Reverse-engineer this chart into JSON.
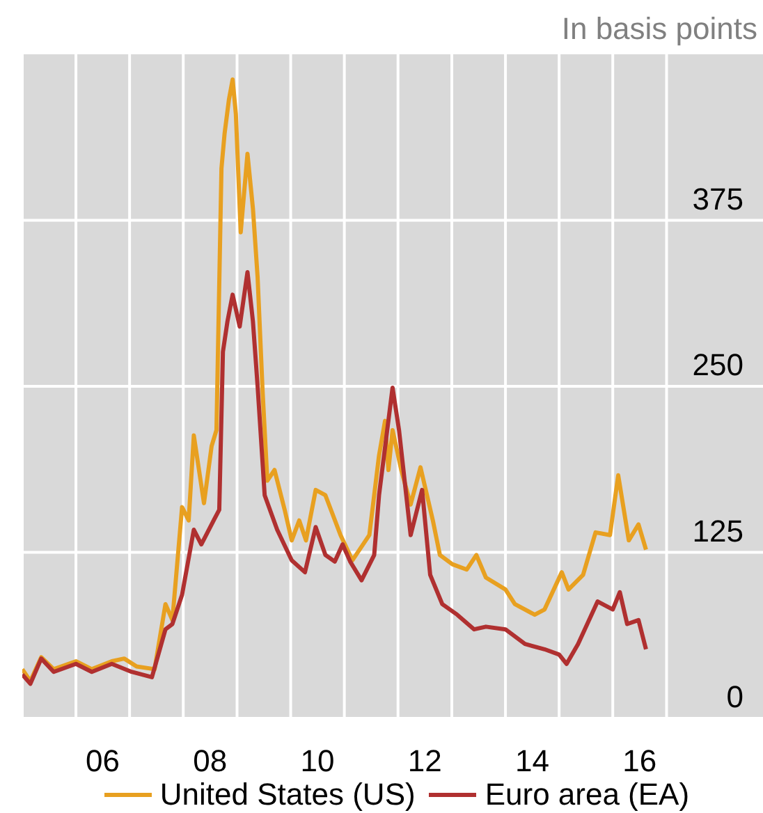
{
  "chart_data": {
    "type": "line",
    "ylabel": "In basis points",
    "xlim": [
      "2005-01-01",
      "2018-10-19"
    ],
    "ylim": [
      0,
      500
    ],
    "xticks": [
      {
        "value": "2005-01-01",
        "label": null
      },
      {
        "value": "2006-01-01",
        "label": null
      },
      {
        "value": "2006-07-02",
        "label": "06"
      },
      {
        "value": "2007-01-01",
        "label": null
      },
      {
        "value": "2008-01-01",
        "label": null
      },
      {
        "value": "2008-07-02",
        "label": "08"
      },
      {
        "value": "2009-01-01",
        "label": null
      },
      {
        "value": "2010-01-01",
        "label": null
      },
      {
        "value": "2010-07-02",
        "label": "10"
      },
      {
        "value": "2011-01-01",
        "label": null
      },
      {
        "value": "2012-01-01",
        "label": null
      },
      {
        "value": "2012-07-02",
        "label": "12"
      },
      {
        "value": "2013-01-01",
        "label": null
      },
      {
        "value": "2014-01-01",
        "label": null
      },
      {
        "value": "2014-07-02",
        "label": "14"
      },
      {
        "value": "2015-01-01",
        "label": null
      },
      {
        "value": "2016-01-01",
        "label": null
      },
      {
        "value": "2016-07-02",
        "label": "16"
      },
      {
        "value": "2017-01-01",
        "label": null
      }
    ],
    "yticks": [
      0,
      125,
      250,
      375
    ],
    "grid": true,
    "legend": "bottom",
    "marker": "none",
    "line_style": "solid",
    "series": [
      {
        "name": "United States (US)",
        "color": "#e8a020",
        "x": [
          "2005-01-01",
          "2005-02-25",
          "2005-05-10",
          "2005-08-03",
          "2006-01-01",
          "2006-04-19",
          "2006-09-02",
          "2006-11-25",
          "2007-02-18",
          "2007-06-20",
          "2007-09-02",
          "2007-10-19",
          "2007-12-24",
          "2008-02-07",
          "2008-03-13",
          "2008-05-21",
          "2008-07-12",
          "2008-08-14",
          "2008-09-17",
          "2008-10-08",
          "2008-11-07",
          "2008-12-02",
          "2008-12-24",
          "2009-01-26",
          "2009-03-13",
          "2009-04-19",
          "2009-05-21",
          "2009-06-24",
          "2009-07-26",
          "2009-09-13",
          "2009-11-21",
          "2010-01-08",
          "2010-02-28",
          "2010-04-15",
          "2010-06-20",
          "2010-08-25",
          "2010-12-06",
          "2011-02-25",
          "2011-06-20",
          "2011-08-25",
          "2011-10-05",
          "2011-10-28",
          "2011-11-25",
          "2012-01-23",
          "2012-03-27",
          "2012-06-02",
          "2012-08-25",
          "2012-10-12",
          "2013-01-05",
          "2013-04-12",
          "2013-06-17",
          "2013-08-21",
          "2014-01-01",
          "2014-03-06",
          "2014-07-19",
          "2014-09-24",
          "2015-01-19",
          "2015-03-06",
          "2015-06-13",
          "2015-09-06",
          "2015-12-13",
          "2016-02-07",
          "2016-04-19",
          "2016-06-24",
          "2016-08-14"
        ],
        "values": [
          37,
          28,
          46,
          37,
          43,
          37,
          43,
          45,
          39,
          37,
          86,
          74,
          159,
          149,
          213,
          162,
          205,
          217,
          414,
          440,
          466,
          481,
          455,
          366,
          425,
          384,
          332,
          246,
          179,
          187,
          157,
          134,
          149,
          134,
          172,
          168,
          138,
          119,
          138,
          198,
          224,
          187,
          217,
          187,
          161,
          189,
          149,
          123,
          116,
          112,
          123,
          106,
          97,
          86,
          78,
          82,
          110,
          97,
          108,
          140,
          138,
          183,
          134,
          146,
          127
        ]
      },
      {
        "name": "Euro area (EA)",
        "color": "#b03030",
        "x": [
          "2005-01-01",
          "2005-02-25",
          "2005-05-10",
          "2005-08-03",
          "2006-01-01",
          "2006-04-19",
          "2006-09-02",
          "2007-01-15",
          "2007-06-02",
          "2007-09-02",
          "2007-10-19",
          "2007-12-24",
          "2008-03-13",
          "2008-05-03",
          "2008-07-26",
          "2008-09-02",
          "2008-09-27",
          "2008-10-28",
          "2008-12-02",
          "2009-01-19",
          "2009-03-13",
          "2009-04-19",
          "2009-05-21",
          "2009-07-08",
          "2009-10-01",
          "2010-01-08",
          "2010-04-08",
          "2010-06-20",
          "2010-08-25",
          "2010-10-28",
          "2010-12-20",
          "2011-02-10",
          "2011-04-28",
          "2011-07-23",
          "2011-08-25",
          "2011-10-15",
          "2011-11-25",
          "2012-01-08",
          "2012-03-27",
          "2012-06-13",
          "2012-08-07",
          "2012-10-28",
          "2013-02-07",
          "2013-06-02",
          "2013-08-21",
          "2014-01-01",
          "2014-05-14",
          "2014-09-24",
          "2015-01-01",
          "2015-02-21",
          "2015-05-10",
          "2015-09-20",
          "2016-01-01",
          "2016-02-18",
          "2016-04-08",
          "2016-06-24",
          "2016-08-14"
        ],
        "values": [
          33,
          26,
          45,
          35,
          41,
          35,
          41,
          35,
          31,
          67,
          71,
          93,
          142,
          131,
          149,
          157,
          276,
          299,
          319,
          295,
          336,
          299,
          250,
          168,
          142,
          119,
          110,
          144,
          123,
          118,
          131,
          118,
          104,
          123,
          168,
          213,
          249,
          217,
          138,
          172,
          108,
          86,
          78,
          67,
          69,
          67,
          56,
          52,
          48,
          41,
          56,
          88,
          82,
          95,
          71,
          74,
          52
        ]
      }
    ]
  }
}
